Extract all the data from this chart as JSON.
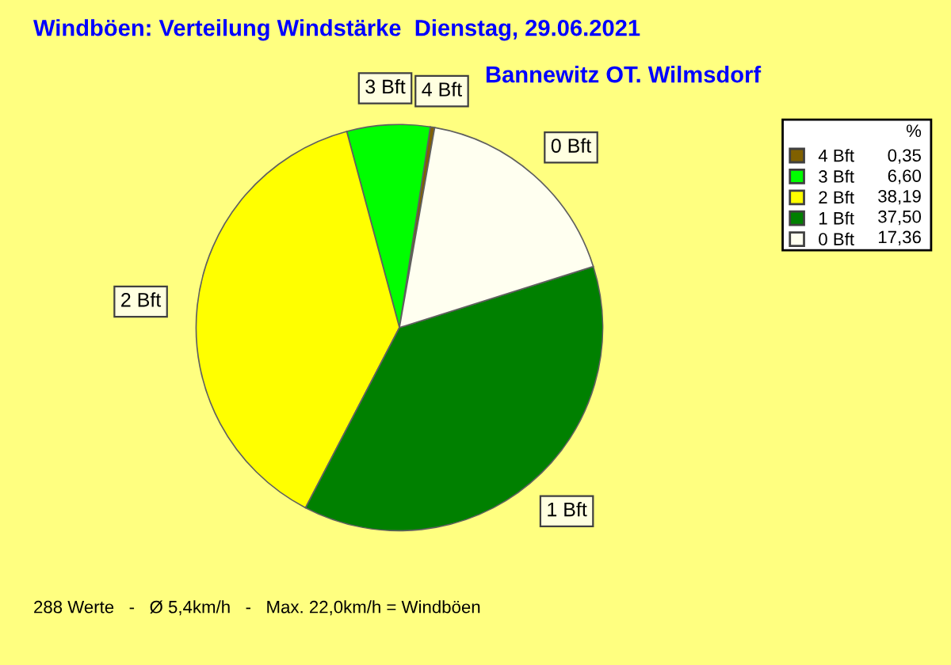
{
  "chart_data": {
    "type": "pie",
    "title": "Windböen: Verteilung Windstärke  Dienstag, 29.06.2021",
    "subtitle": "Bannewitz OT. Wilmsdorf",
    "categories": [
      "4 Bft",
      "3 Bft",
      "2 Bft",
      "1 Bft",
      "0 Bft"
    ],
    "values": [
      0.35,
      6.6,
      38.19,
      37.5,
      17.36
    ],
    "colors": [
      "#806000",
      "#00ff00",
      "#ffff00",
      "#008000",
      "#fffff0"
    ],
    "value_labels": [
      "0,35",
      "6,60",
      "38,19",
      "37,50",
      "17,36"
    ],
    "legend_title": "%",
    "legend": "top right",
    "annotations": [
      "288 Werte   -   Ø 5,4km/h   -   Max. 22,0km/h = Windböen"
    ]
  }
}
